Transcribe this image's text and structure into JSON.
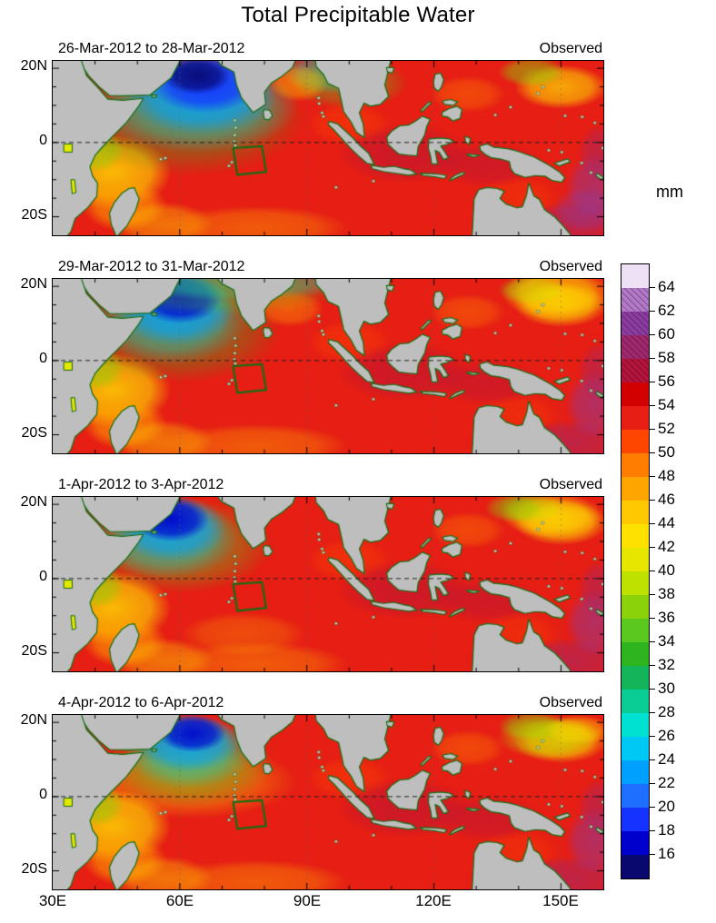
{
  "title": "Total Precipitable Water",
  "panels": [
    {
      "date_range": "26-Mar-2012 to 28-Mar-2012",
      "source": "Observed"
    },
    {
      "date_range": "29-Mar-2012 to 31-Mar-2012",
      "source": "Observed"
    },
    {
      "date_range": "1-Apr-2012 to 3-Apr-2012",
      "source": "Observed"
    },
    {
      "date_range": "4-Apr-2012 to 6-Apr-2012",
      "source": "Observed"
    }
  ],
  "x_axis": {
    "ticks": [
      "30E",
      "60E",
      "90E",
      "120E",
      "150E"
    ]
  },
  "y_axis": {
    "ticks": [
      "20N",
      "0",
      "20S"
    ]
  },
  "colorbar": {
    "units": "mm",
    "tick_labels": [
      "16",
      "18",
      "20",
      "22",
      "24",
      "26",
      "28",
      "30",
      "32",
      "34",
      "36",
      "38",
      "40",
      "42",
      "44",
      "46",
      "48",
      "50",
      "52",
      "54",
      "56",
      "58",
      "60",
      "62",
      "64"
    ],
    "colors": [
      "#08086E",
      "#0000CD",
      "#1632FF",
      "#1E6EFF",
      "#00A0FF",
      "#00C8F5",
      "#00E1D2",
      "#0ACD96",
      "#14B45A",
      "#2DB41E",
      "#5AC81E",
      "#8CD20A",
      "#BEE100",
      "#E6E600",
      "#FFE100",
      "#FFC800",
      "#FFA500",
      "#FF7D00",
      "#FF4600",
      "#E61E14",
      "#D20000",
      "#B4143C",
      "#A0286E",
      "#8C3CA0",
      "#B478C8",
      "#EEE1F5"
    ],
    "hatched_segment_indices": [
      21,
      22,
      23,
      24
    ]
  },
  "map": {
    "land_color": "#BEBEBE",
    "coast_color": "#156E15",
    "box_color": "#156E15"
  },
  "chart_data": {
    "type": "heatmap",
    "title": "Total Precipitable Water",
    "units": "mm",
    "levels_mm": [
      16,
      18,
      20,
      22,
      24,
      26,
      28,
      30,
      32,
      34,
      36,
      38,
      40,
      42,
      44,
      46,
      48,
      50,
      52,
      54,
      56,
      58,
      60,
      62,
      64
    ],
    "panels": [
      {
        "period": "26-Mar-2012 to 28-Mar-2012",
        "source": "Observed"
      },
      {
        "period": "29-Mar-2012 to 31-Mar-2012",
        "source": "Observed"
      },
      {
        "period": "1-Apr-2012 to 3-Apr-2012",
        "source": "Observed"
      },
      {
        "period": "4-Apr-2012 to 6-Apr-2012",
        "source": "Observed"
      }
    ],
    "x_ticks": [
      "30E",
      "60E",
      "90E",
      "120E",
      "150E"
    ],
    "y_ticks": [
      "20N",
      "0",
      "20S"
    ],
    "domain": {
      "lon": "30E to 160E",
      "lat": "about 25S to 22N"
    },
    "highlight_box": {
      "lon": "about 73E-80E",
      "lat": "about 1S-8S",
      "style": "green outline"
    },
    "description": "Four 3-day observed maps of total precipitable water; dry (blue) region over the Arabian Sea, moist (red/purple) equatorial Indo-Pacific, gray land with green coastlines, dashed equator line."
  }
}
